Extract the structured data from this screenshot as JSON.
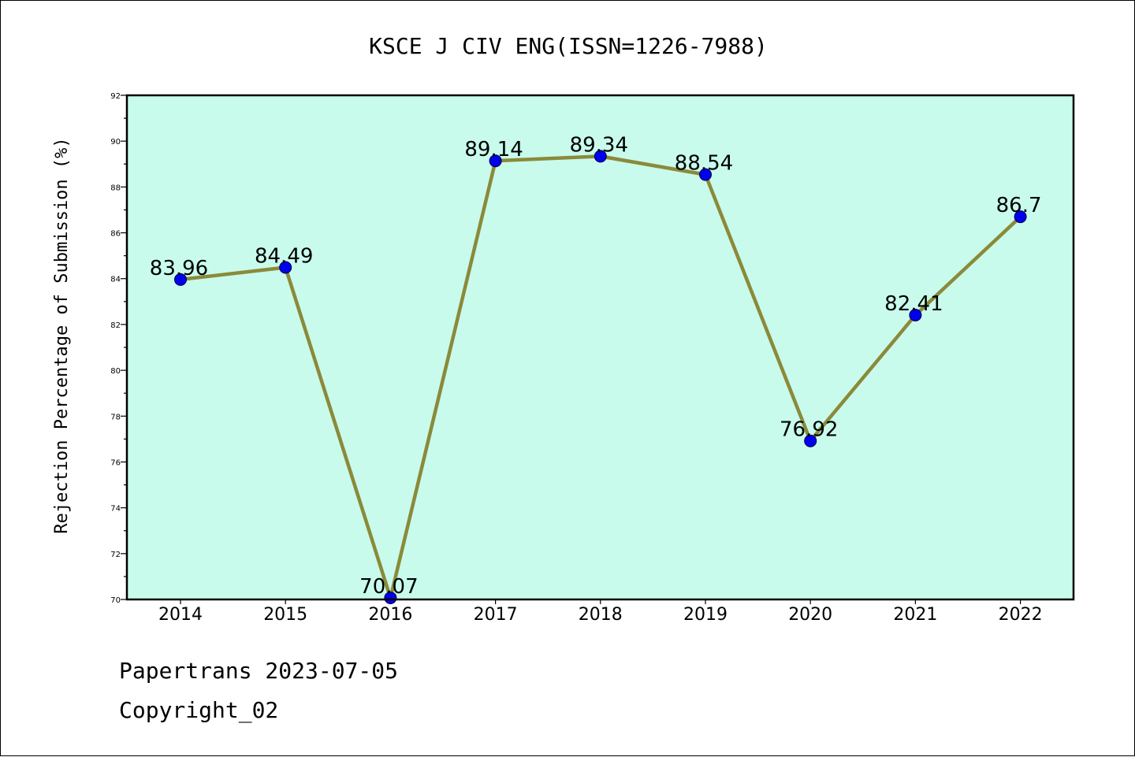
{
  "chart_data": {
    "type": "line",
    "title": "KSCE J CIV ENG(ISSN=1226-7988)",
    "xlabel": "",
    "ylabel": "Rejection Percentage of Submission (%)",
    "categories": [
      "2014",
      "2015",
      "2016",
      "2017",
      "2018",
      "2019",
      "2020",
      "2021",
      "2022"
    ],
    "values": [
      83.96,
      84.49,
      70.07,
      89.14,
      89.34,
      88.54,
      76.92,
      82.41,
      86.7
    ],
    "data_labels": [
      "83.96",
      "84.49",
      "70.07",
      "89.14",
      "89.34",
      "88.54",
      "76.92",
      "82.41",
      "86.7"
    ],
    "ylim": [
      70,
      92
    ],
    "yticks": [
      70,
      72,
      74,
      76,
      78,
      80,
      82,
      84,
      86,
      88,
      90,
      92
    ],
    "grid": false,
    "legend": "none",
    "colors": {
      "plot_background": "#c8fbec",
      "line": "#8b8a3a",
      "marker": "#0000ee",
      "axis": "#000000"
    }
  },
  "footer": {
    "source_line": "Papertrans 2023-07-05",
    "copyright_line": "Copyright_02"
  }
}
